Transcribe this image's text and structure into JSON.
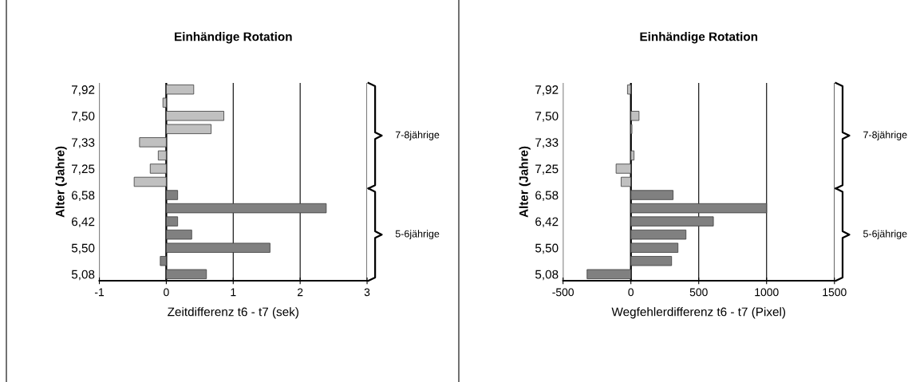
{
  "chart_data": [
    {
      "type": "bar",
      "orientation": "horizontal",
      "title": "Einhändige Rotation",
      "xlabel": "Zeitdifferenz t6 - t7 (sek)",
      "ylabel": "Alter (Jahre)",
      "categories": [
        "7,92",
        null,
        "7,50",
        null,
        "7,33",
        null,
        "7,25",
        null,
        "6,58",
        null,
        "6,42",
        null,
        "5,50",
        null,
        "5,08"
      ],
      "series": [
        {
          "name": "7-8jährige",
          "color": "#c0c0c0",
          "values": [
            0.41,
            -0.05,
            0.86,
            0.67,
            -0.4,
            -0.12,
            -0.24,
            -0.48,
            null,
            null,
            null,
            null,
            null,
            null,
            null
          ]
        },
        {
          "name": "5-6jährige",
          "color": "#808080",
          "values": [
            null,
            null,
            null,
            null,
            null,
            null,
            null,
            null,
            0.17,
            2.39,
            0.17,
            0.38,
            1.55,
            -0.09,
            0.6
          ]
        }
      ],
      "xlim": [
        -1,
        3
      ],
      "xticks": [
        -1,
        0,
        1,
        2,
        3
      ],
      "grid": "x",
      "ref_lines": [
        {
          "axis": "x",
          "value": 0
        }
      ]
    },
    {
      "type": "bar",
      "orientation": "horizontal",
      "title": "Einhändige Rotation",
      "xlabel": "Wegfehlerdifferenz t6 - t7 (Pixel)",
      "ylabel": "Alter (Jahre)",
      "categories": [
        "7,92",
        null,
        "7,50",
        null,
        "7,33",
        null,
        "7,25",
        null,
        "6,58",
        null,
        "6,42",
        null,
        "5,50",
        null,
        "5,08"
      ],
      "series": [
        {
          "name": "7-8jährige",
          "color": "#c0c0c0",
          "values": [
            -25,
            null,
            60,
            8,
            null,
            23,
            -109,
            -72,
            null,
            null,
            null,
            null,
            null,
            null,
            null
          ]
        },
        {
          "name": "5-6jährige",
          "color": "#808080",
          "values": [
            null,
            null,
            null,
            null,
            null,
            null,
            null,
            null,
            311,
            1000,
            608,
            406,
            347,
            300,
            -323
          ]
        }
      ],
      "xlim": [
        -500,
        1500
      ],
      "xticks": [
        -500,
        0,
        500,
        1000,
        1500
      ],
      "grid": "x",
      "ref_lines": [
        {
          "axis": "x",
          "value": 0
        }
      ]
    }
  ]
}
